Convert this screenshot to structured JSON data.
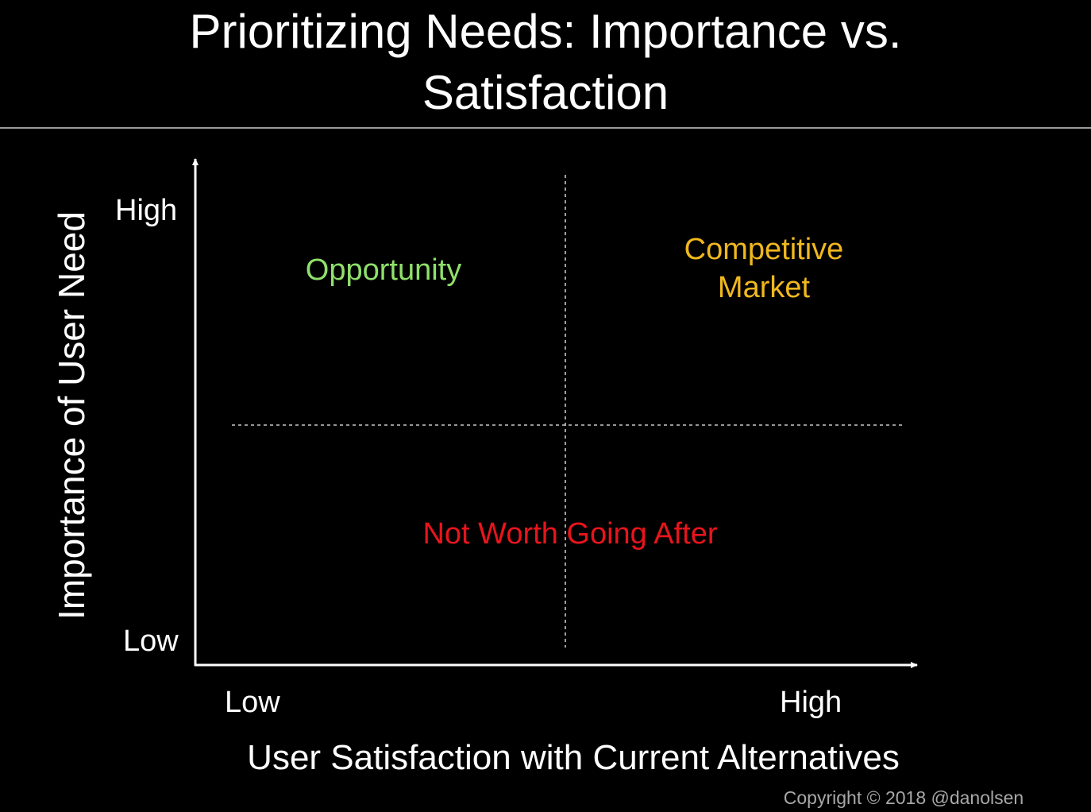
{
  "title": {
    "line1": "Prioritizing Needs: Importance vs.",
    "line2": "Satisfaction"
  },
  "axes": {
    "y_title": "Importance of User Need",
    "y_high": "High",
    "y_low": "Low",
    "x_title": "User Satisfaction with Current Alternatives",
    "x_low": "Low",
    "x_high": "High"
  },
  "quadrants": {
    "opportunity": {
      "label": "Opportunity",
      "color": "#8fe06a"
    },
    "competitive": {
      "line1": "Competitive",
      "line2": "Market",
      "color": "#f0b81e"
    },
    "not_worth": {
      "label": "Not Worth Going After",
      "color": "#e8141c"
    }
  },
  "colors": {
    "background": "#000000",
    "text": "#ffffff",
    "axis": "#ffffff",
    "divider": "#c8c8c8",
    "rule": "#9a9a9a",
    "copyright": "#a8a8a8"
  },
  "footer": {
    "copyright": "Copyright © 2018 @danolsen"
  }
}
